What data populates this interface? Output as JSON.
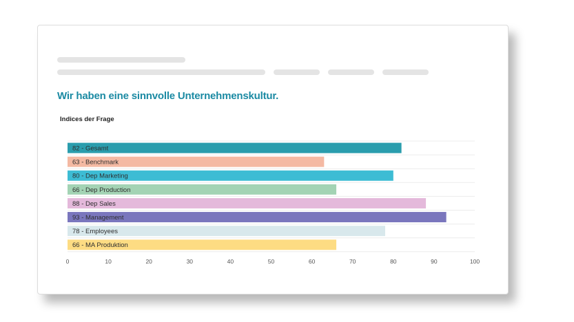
{
  "question": {
    "title": "Wir haben eine sinnvolle Unternehmenskultur."
  },
  "chart_data": {
    "type": "bar",
    "orientation": "horizontal",
    "title": "Indices der Frage",
    "categories": [
      "Gesamt",
      "Benchmark",
      "Dep Marketing",
      "Dep Production",
      "Dep Sales",
      "Management",
      "Employees",
      "MA Produktion"
    ],
    "values": [
      82,
      63,
      80,
      66,
      88,
      93,
      78,
      66
    ],
    "labels": [
      "82 - Gesamt",
      "63 - Benchmark",
      "80 - Dep Marketing",
      "66 - Dep Production",
      "88 - Dep Sales",
      "93 - Management",
      "78 - Employees",
      "66 - MA Produktion"
    ],
    "colors": [
      "#2a9dad",
      "#f4b9a3",
      "#3dbcd4",
      "#a3d3b4",
      "#e4b9db",
      "#7a76bd",
      "#d8e8ec",
      "#fddc83"
    ],
    "xlim": [
      0,
      100
    ],
    "xticks": [
      "0",
      "10",
      "20",
      "30",
      "40",
      "50",
      "60",
      "70",
      "80",
      "90",
      "100"
    ],
    "grid": "horizontal row separators",
    "legend": "none"
  }
}
